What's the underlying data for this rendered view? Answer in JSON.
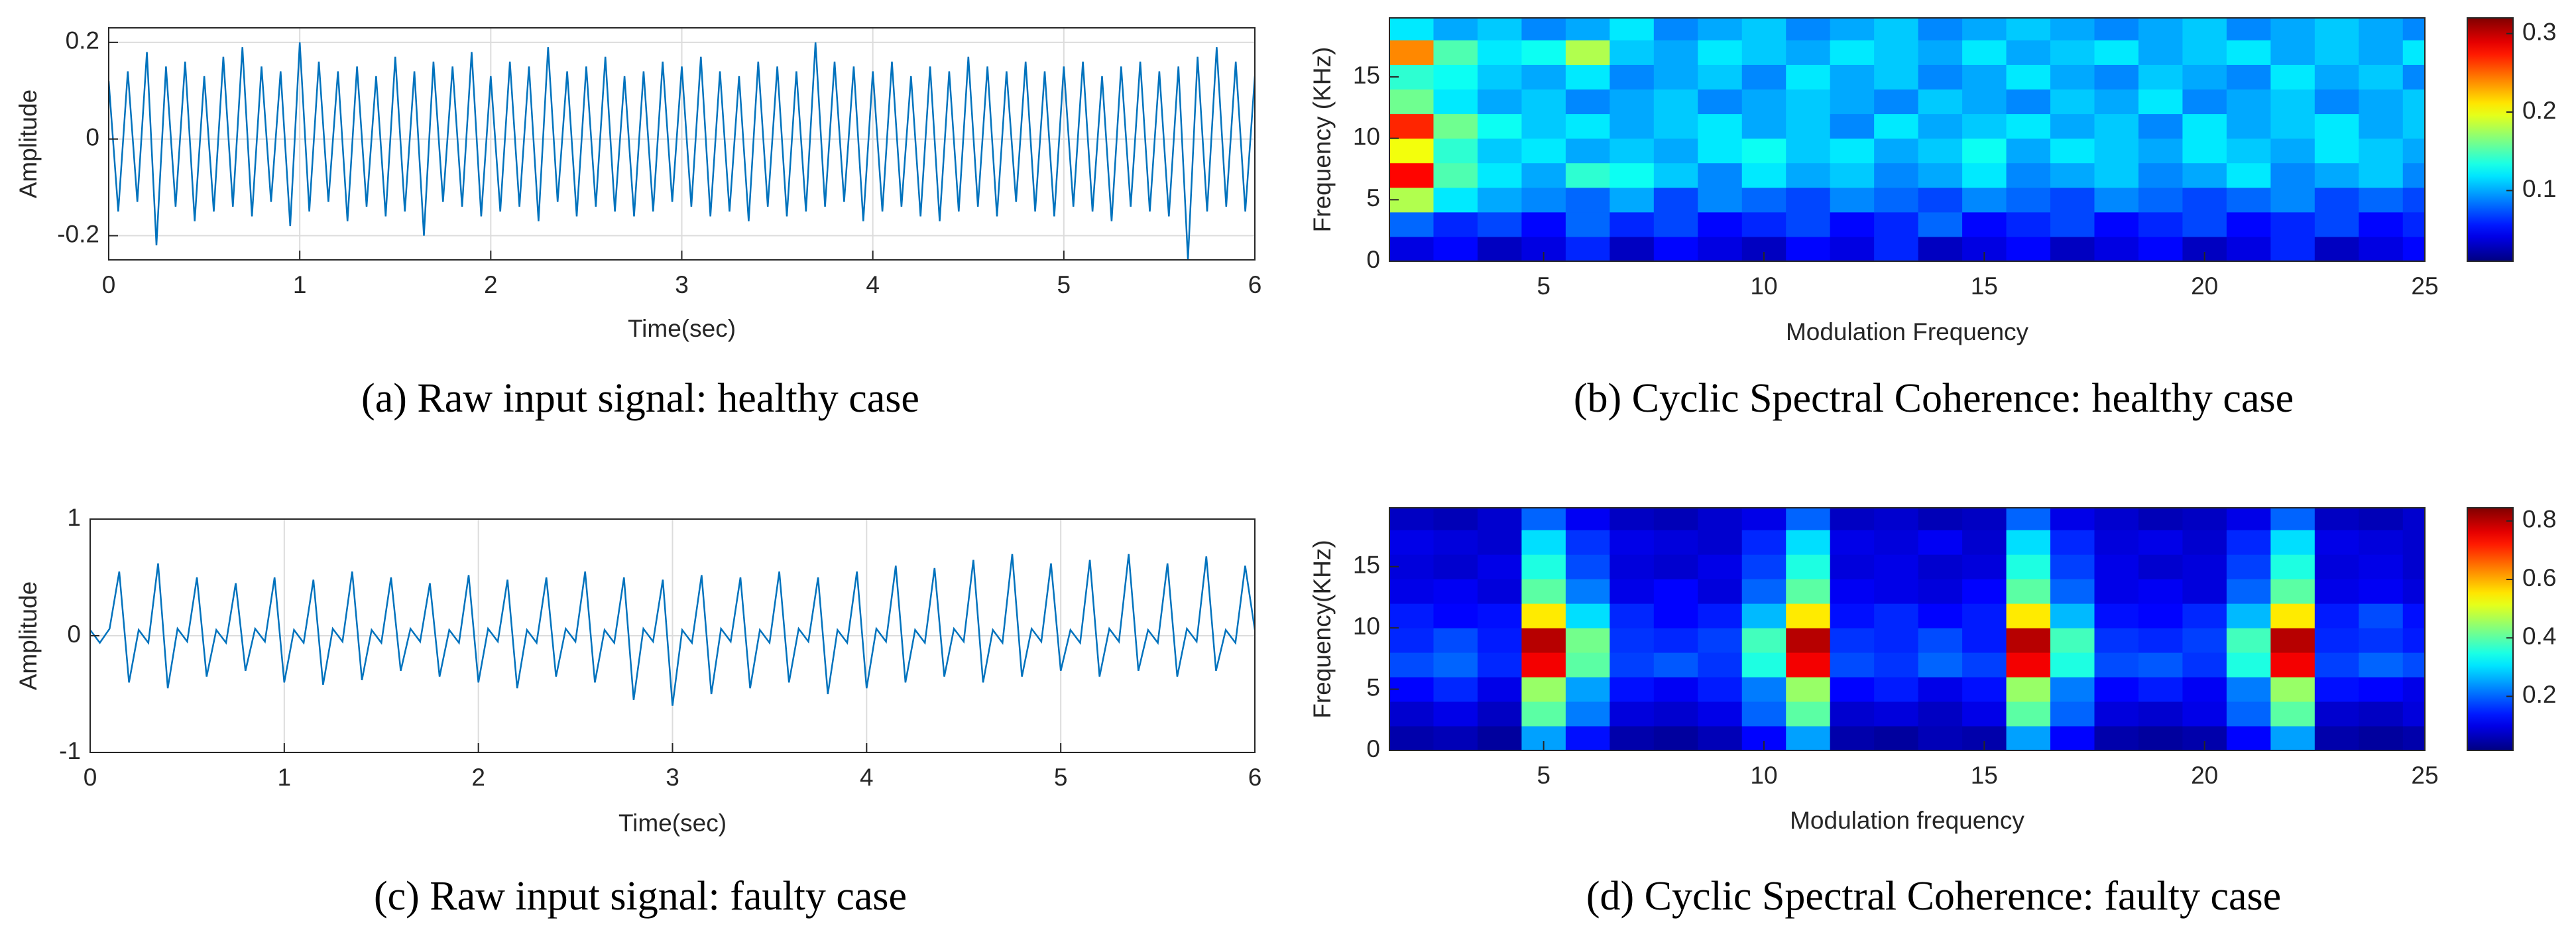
{
  "chart_data": [
    {
      "type": "line",
      "caption": "(a) Raw input signal: healthy case",
      "xlabel": "Time(sec)",
      "ylabel": "Amplitude",
      "color": "#0072bd",
      "grid": true,
      "xlim": [
        0,
        6
      ],
      "xticks": [
        0,
        1,
        2,
        3,
        4,
        5,
        6
      ],
      "ylim": [
        -0.25,
        0.23
      ],
      "yticks": [
        -0.2,
        0,
        0.2
      ],
      "x": [
        0,
        0.05,
        0.1,
        0.15,
        0.2,
        0.25,
        0.3,
        0.35,
        0.4,
        0.45,
        0.5,
        0.55,
        0.6,
        0.65,
        0.7,
        0.75,
        0.8,
        0.85,
        0.9,
        0.95,
        1,
        1.05,
        1.1,
        1.15,
        1.2,
        1.25,
        1.3,
        1.35,
        1.4,
        1.45,
        1.5,
        1.55,
        1.6,
        1.65,
        1.7,
        1.75,
        1.8,
        1.85,
        1.9,
        1.95,
        2,
        2.05,
        2.1,
        2.15,
        2.2,
        2.25,
        2.3,
        2.35,
        2.4,
        2.45,
        2.5,
        2.55,
        2.6,
        2.65,
        2.7,
        2.75,
        2.8,
        2.85,
        2.9,
        2.95,
        3,
        3.05,
        3.1,
        3.15,
        3.2,
        3.25,
        3.3,
        3.35,
        3.4,
        3.45,
        3.5,
        3.55,
        3.6,
        3.65,
        3.7,
        3.75,
        3.8,
        3.85,
        3.9,
        3.95,
        4,
        4.05,
        4.1,
        4.15,
        4.2,
        4.25,
        4.3,
        4.35,
        4.4,
        4.45,
        4.5,
        4.55,
        4.6,
        4.65,
        4.7,
        4.75,
        4.8,
        4.85,
        4.9,
        4.95,
        5,
        5.05,
        5.1,
        5.15,
        5.2,
        5.25,
        5.3,
        5.35,
        5.4,
        5.45,
        5.5,
        5.55,
        5.6,
        5.65,
        5.7,
        5.75,
        5.8,
        5.85,
        5.9,
        5.95,
        6
      ],
      "values": [
        0.12,
        -0.15,
        0.14,
        -0.13,
        0.18,
        -0.22,
        0.15,
        -0.14,
        0.16,
        -0.17,
        0.13,
        -0.15,
        0.17,
        -0.14,
        0.19,
        -0.16,
        0.15,
        -0.13,
        0.14,
        -0.18,
        0.2,
        -0.15,
        0.16,
        -0.13,
        0.14,
        -0.17,
        0.15,
        -0.14,
        0.13,
        -0.16,
        0.17,
        -0.15,
        0.14,
        -0.2,
        0.16,
        -0.13,
        0.15,
        -0.14,
        0.18,
        -0.16,
        0.13,
        -0.15,
        0.16,
        -0.14,
        0.15,
        -0.17,
        0.19,
        -0.13,
        0.14,
        -0.16,
        0.15,
        -0.14,
        0.17,
        -0.15,
        0.13,
        -0.16,
        0.14,
        -0.15,
        0.16,
        -0.13,
        0.15,
        -0.14,
        0.17,
        -0.16,
        0.14,
        -0.15,
        0.13,
        -0.17,
        0.16,
        -0.14,
        0.15,
        -0.16,
        0.14,
        -0.15,
        0.2,
        -0.14,
        0.16,
        -0.13,
        0.15,
        -0.17,
        0.14,
        -0.15,
        0.16,
        -0.14,
        0.13,
        -0.16,
        0.15,
        -0.17,
        0.14,
        -0.15,
        0.17,
        -0.14,
        0.15,
        -0.16,
        0.14,
        -0.13,
        0.16,
        -0.15,
        0.14,
        -0.16,
        0.15,
        -0.14,
        0.16,
        -0.15,
        0.13,
        -0.17,
        0.15,
        -0.14,
        0.16,
        -0.15,
        0.14,
        -0.16,
        0.15,
        -0.25,
        0.17,
        -0.15,
        0.19,
        -0.14,
        0.16,
        -0.15,
        0.13
      ]
    },
    {
      "type": "heatmap",
      "caption": "(b) Cyclic Spectral Coherence: healthy case",
      "xlabel": "Modulation Frequency",
      "ylabel": "Frequency (KHz)",
      "colormap": "jet",
      "xlim": [
        1.5,
        25
      ],
      "xticks": [
        5,
        10,
        15,
        20,
        25
      ],
      "ylim": [
        0,
        19.8
      ],
      "yticks": [
        0,
        5,
        10,
        15
      ],
      "clim": [
        0.01,
        0.32
      ],
      "cticks": [
        0.1,
        0.2,
        0.3
      ],
      "x": [
        2,
        3,
        4,
        5,
        6,
        7,
        8,
        9,
        10,
        11,
        12,
        13,
        14,
        15,
        16,
        17,
        18,
        19,
        20,
        21,
        22,
        23,
        24,
        25
      ],
      "y": [
        1,
        3,
        5,
        7,
        9,
        11,
        13,
        15,
        17,
        19
      ],
      "z": [
        [
          0.04,
          0.05,
          0.03,
          0.04,
          0.06,
          0.03,
          0.05,
          0.04,
          0.03,
          0.05,
          0.04,
          0.06,
          0.03,
          0.04,
          0.05,
          0.03,
          0.04,
          0.05,
          0.03,
          0.04,
          0.06,
          0.03,
          0.04,
          0.05
        ],
        [
          0.08,
          0.06,
          0.07,
          0.05,
          0.08,
          0.06,
          0.07,
          0.05,
          0.06,
          0.07,
          0.05,
          0.06,
          0.08,
          0.05,
          0.06,
          0.07,
          0.05,
          0.06,
          0.07,
          0.05,
          0.06,
          0.07,
          0.05,
          0.06
        ],
        [
          0.18,
          0.12,
          0.1,
          0.09,
          0.08,
          0.1,
          0.07,
          0.09,
          0.08,
          0.07,
          0.09,
          0.08,
          0.07,
          0.09,
          0.08,
          0.07,
          0.09,
          0.08,
          0.07,
          0.08,
          0.09,
          0.07,
          0.08,
          0.07
        ],
        [
          0.28,
          0.15,
          0.12,
          0.1,
          0.14,
          0.13,
          0.11,
          0.09,
          0.12,
          0.1,
          0.11,
          0.09,
          0.1,
          0.12,
          0.09,
          0.1,
          0.11,
          0.09,
          0.1,
          0.12,
          0.09,
          0.1,
          0.11,
          0.09
        ],
        [
          0.2,
          0.14,
          0.11,
          0.12,
          0.1,
          0.11,
          0.1,
          0.12,
          0.13,
          0.11,
          0.12,
          0.1,
          0.11,
          0.13,
          0.1,
          0.12,
          0.11,
          0.1,
          0.12,
          0.11,
          0.1,
          0.12,
          0.11,
          0.1
        ],
        [
          0.27,
          0.16,
          0.13,
          0.11,
          0.12,
          0.1,
          0.11,
          0.12,
          0.1,
          0.11,
          0.09,
          0.12,
          0.1,
          0.11,
          0.12,
          0.1,
          0.11,
          0.09,
          0.12,
          0.1,
          0.11,
          0.12,
          0.1,
          0.11
        ],
        [
          0.16,
          0.12,
          0.1,
          0.11,
          0.09,
          0.1,
          0.11,
          0.09,
          0.1,
          0.11,
          0.1,
          0.09,
          0.11,
          0.1,
          0.09,
          0.11,
          0.1,
          0.12,
          0.09,
          0.1,
          0.11,
          0.09,
          0.1,
          0.11
        ],
        [
          0.14,
          0.13,
          0.11,
          0.1,
          0.12,
          0.09,
          0.1,
          0.11,
          0.09,
          0.12,
          0.1,
          0.11,
          0.09,
          0.1,
          0.12,
          0.1,
          0.09,
          0.11,
          0.1,
          0.09,
          0.12,
          0.1,
          0.11,
          0.09
        ],
        [
          0.24,
          0.15,
          0.12,
          0.13,
          0.18,
          0.11,
          0.1,
          0.12,
          0.11,
          0.1,
          0.12,
          0.11,
          0.1,
          0.12,
          0.1,
          0.11,
          0.12,
          0.1,
          0.11,
          0.12,
          0.1,
          0.11,
          0.1,
          0.12
        ],
        [
          0.12,
          0.1,
          0.11,
          0.09,
          0.1,
          0.12,
          0.09,
          0.1,
          0.11,
          0.09,
          0.1,
          0.11,
          0.09,
          0.1,
          0.11,
          0.1,
          0.09,
          0.1,
          0.11,
          0.09,
          0.1,
          0.11,
          0.1,
          0.09
        ]
      ]
    },
    {
      "type": "line",
      "caption": "(c) Raw input signal: faulty case",
      "xlabel": "Time(sec)",
      "ylabel": "Amplitude",
      "color": "#0072bd",
      "grid": true,
      "xlim": [
        0,
        6
      ],
      "xticks": [
        0,
        1,
        2,
        3,
        4,
        5,
        6
      ],
      "ylim": [
        -1,
        1
      ],
      "yticks": [
        -1,
        0,
        1
      ],
      "x": [
        0,
        0.05,
        0.1,
        0.15,
        0.2,
        0.25,
        0.3,
        0.35,
        0.4,
        0.45,
        0.5,
        0.55,
        0.6,
        0.65,
        0.7,
        0.75,
        0.8,
        0.85,
        0.9,
        0.95,
        1,
        1.05,
        1.1,
        1.15,
        1.2,
        1.25,
        1.3,
        1.35,
        1.4,
        1.45,
        1.5,
        1.55,
        1.6,
        1.65,
        1.7,
        1.75,
        1.8,
        1.85,
        1.9,
        1.95,
        2,
        2.05,
        2.1,
        2.15,
        2.2,
        2.25,
        2.3,
        2.35,
        2.4,
        2.45,
        2.5,
        2.55,
        2.6,
        2.65,
        2.7,
        2.75,
        2.8,
        2.85,
        2.9,
        2.95,
        3,
        3.05,
        3.1,
        3.15,
        3.2,
        3.25,
        3.3,
        3.35,
        3.4,
        3.45,
        3.5,
        3.55,
        3.6,
        3.65,
        3.7,
        3.75,
        3.8,
        3.85,
        3.9,
        3.95,
        4,
        4.05,
        4.1,
        4.15,
        4.2,
        4.25,
        4.3,
        4.35,
        4.4,
        4.45,
        4.5,
        4.55,
        4.6,
        4.65,
        4.7,
        4.75,
        4.8,
        4.85,
        4.9,
        4.95,
        5,
        5.05,
        5.1,
        5.15,
        5.2,
        5.25,
        5.3,
        5.35,
        5.4,
        5.45,
        5.5,
        5.55,
        5.6,
        5.65,
        5.7,
        5.75,
        5.8,
        5.85,
        5.9,
        5.95,
        6
      ],
      "values": [
        0.05,
        -0.06,
        0.06,
        0.55,
        -0.4,
        0.05,
        -0.06,
        0.62,
        -0.45,
        0.06,
        -0.05,
        0.5,
        -0.35,
        0.05,
        -0.06,
        0.45,
        -0.3,
        0.06,
        -0.05,
        0.5,
        -0.4,
        0.05,
        -0.06,
        0.48,
        -0.42,
        0.06,
        -0.05,
        0.55,
        -0.38,
        0.05,
        -0.06,
        0.5,
        -0.3,
        0.06,
        -0.05,
        0.45,
        -0.35,
        0.05,
        -0.06,
        0.52,
        -0.4,
        0.06,
        -0.05,
        0.48,
        -0.45,
        0.05,
        -0.06,
        0.5,
        -0.35,
        0.06,
        -0.05,
        0.55,
        -0.4,
        0.05,
        -0.06,
        0.5,
        -0.55,
        0.06,
        -0.05,
        0.48,
        -0.6,
        0.05,
        -0.06,
        0.52,
        -0.5,
        0.06,
        -0.05,
        0.5,
        -0.45,
        0.05,
        -0.06,
        0.55,
        -0.4,
        0.06,
        -0.05,
        0.5,
        -0.5,
        0.05,
        -0.06,
        0.55,
        -0.45,
        0.06,
        -0.05,
        0.6,
        -0.4,
        0.05,
        -0.06,
        0.58,
        -0.35,
        0.06,
        -0.05,
        0.65,
        -0.4,
        0.05,
        -0.06,
        0.7,
        -0.35,
        0.06,
        -0.05,
        0.62,
        -0.3,
        0.05,
        -0.06,
        0.65,
        -0.35,
        0.06,
        -0.05,
        0.7,
        -0.3,
        0.05,
        -0.06,
        0.62,
        -0.35,
        0.06,
        -0.05,
        0.68,
        -0.3,
        0.05,
        -0.06,
        0.6,
        0.05
      ]
    },
    {
      "type": "heatmap",
      "caption": "(d) Cyclic Spectral Coherence: faulty case",
      "xlabel": "Modulation frequency",
      "ylabel": "Frequency(KHz)",
      "colormap": "jet",
      "xlim": [
        1.5,
        25
      ],
      "xticks": [
        5,
        10,
        15,
        20,
        25
      ],
      "ylim": [
        0,
        19.8
      ],
      "yticks": [
        0,
        5,
        10,
        15
      ],
      "clim": [
        0.015,
        0.845
      ],
      "cticks": [
        0.2,
        0.4,
        0.6,
        0.8
      ],
      "x": [
        2,
        3,
        4,
        5,
        6,
        7,
        8,
        9,
        10,
        11,
        12,
        13,
        14,
        15,
        16,
        17,
        18,
        19,
        20,
        21,
        22,
        23,
        24,
        25
      ],
      "y": [
        1,
        3,
        5,
        7,
        9,
        11,
        13,
        15,
        17,
        19
      ],
      "z": [
        [
          0.05,
          0.06,
          0.04,
          0.25,
          0.13,
          0.05,
          0.04,
          0.06,
          0.12,
          0.25,
          0.05,
          0.04,
          0.06,
          0.05,
          0.25,
          0.12,
          0.05,
          0.04,
          0.05,
          0.12,
          0.25,
          0.05,
          0.04,
          0.05
        ],
        [
          0.08,
          0.1,
          0.07,
          0.4,
          0.22,
          0.09,
          0.08,
          0.1,
          0.2,
          0.4,
          0.08,
          0.09,
          0.07,
          0.1,
          0.4,
          0.2,
          0.09,
          0.08,
          0.1,
          0.2,
          0.4,
          0.08,
          0.07,
          0.09
        ],
        [
          0.12,
          0.15,
          0.1,
          0.45,
          0.25,
          0.13,
          0.11,
          0.14,
          0.22,
          0.45,
          0.12,
          0.14,
          0.1,
          0.13,
          0.45,
          0.22,
          0.12,
          0.14,
          0.11,
          0.22,
          0.45,
          0.13,
          0.12,
          0.1
        ],
        [
          0.18,
          0.2,
          0.15,
          0.75,
          0.4,
          0.17,
          0.19,
          0.16,
          0.35,
          0.75,
          0.18,
          0.16,
          0.2,
          0.17,
          0.75,
          0.35,
          0.18,
          0.19,
          0.16,
          0.35,
          0.75,
          0.17,
          0.2,
          0.18
        ],
        [
          0.15,
          0.18,
          0.14,
          0.8,
          0.42,
          0.16,
          0.15,
          0.17,
          0.38,
          0.8,
          0.16,
          0.15,
          0.18,
          0.14,
          0.8,
          0.38,
          0.16,
          0.15,
          0.17,
          0.38,
          0.8,
          0.15,
          0.16,
          0.14
        ],
        [
          0.14,
          0.12,
          0.13,
          0.55,
          0.3,
          0.15,
          0.12,
          0.14,
          0.27,
          0.55,
          0.13,
          0.15,
          0.12,
          0.14,
          0.55,
          0.27,
          0.13,
          0.12,
          0.15,
          0.27,
          0.55,
          0.14,
          0.18,
          0.13
        ],
        [
          0.1,
          0.11,
          0.09,
          0.4,
          0.22,
          0.1,
          0.12,
          0.09,
          0.2,
          0.4,
          0.11,
          0.1,
          0.09,
          0.12,
          0.4,
          0.2,
          0.1,
          0.11,
          0.09,
          0.2,
          0.4,
          0.1,
          0.11,
          0.09
        ],
        [
          0.09,
          0.08,
          0.1,
          0.35,
          0.18,
          0.09,
          0.08,
          0.1,
          0.17,
          0.35,
          0.09,
          0.1,
          0.08,
          0.09,
          0.35,
          0.17,
          0.1,
          0.08,
          0.09,
          0.17,
          0.35,
          0.09,
          0.1,
          0.08
        ],
        [
          0.1,
          0.09,
          0.08,
          0.3,
          0.16,
          0.1,
          0.09,
          0.08,
          0.15,
          0.3,
          0.1,
          0.09,
          0.11,
          0.08,
          0.3,
          0.15,
          0.09,
          0.1,
          0.08,
          0.15,
          0.3,
          0.1,
          0.09,
          0.08
        ],
        [
          0.07,
          0.06,
          0.08,
          0.2,
          0.11,
          0.07,
          0.06,
          0.08,
          0.1,
          0.2,
          0.07,
          0.08,
          0.06,
          0.07,
          0.2,
          0.1,
          0.08,
          0.06,
          0.07,
          0.1,
          0.2,
          0.07,
          0.06,
          0.08
        ]
      ]
    }
  ]
}
